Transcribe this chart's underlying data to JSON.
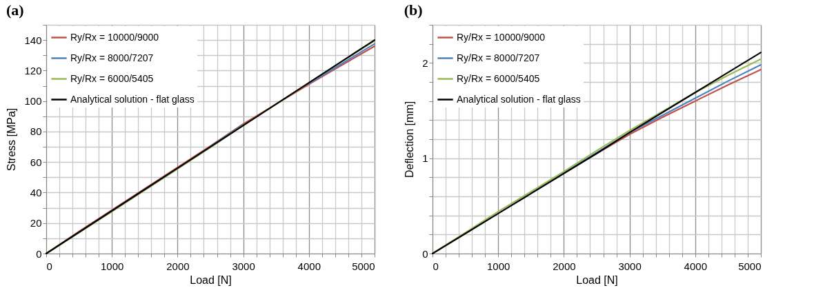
{
  "chart_data": [
    {
      "type": "line",
      "title": "(a)",
      "xlabel": "Load [N]",
      "ylabel": "Stress  [MPa]",
      "grid": true,
      "legend": "top left",
      "x": [
        0,
        500,
        1000,
        1500,
        2000,
        2500,
        3000,
        3500,
        4000,
        4500,
        5000
      ],
      "xlim": [
        0,
        5000
      ],
      "ylim": [
        0,
        150
      ],
      "xticks": [
        0,
        {
          "value": 200,
          "label": null
        },
        {
          "value": 400,
          "label": null
        },
        {
          "value": 600,
          "label": null
        },
        {
          "value": 800,
          "label": null
        },
        1000,
        {
          "value": 1200,
          "label": null
        },
        {
          "value": 1400,
          "label": null
        },
        {
          "value": 1600,
          "label": null
        },
        {
          "value": 1800,
          "label": null
        },
        2000,
        {
          "value": 2200,
          "label": null
        },
        {
          "value": 2400,
          "label": null
        },
        {
          "value": 2600,
          "label": null
        },
        {
          "value": 2800,
          "label": null
        },
        3000,
        {
          "value": 3200,
          "label": null
        },
        {
          "value": 3400,
          "label": null
        },
        {
          "value": 3600,
          "label": null
        },
        {
          "value": 3800,
          "label": null
        },
        4000,
        {
          "value": 4200,
          "label": null
        },
        {
          "value": 4400,
          "label": null
        },
        {
          "value": 4600,
          "label": null
        },
        {
          "value": 4800,
          "label": null
        },
        5000
      ],
      "yticks": [
        0,
        {
          "value": 10,
          "label": null
        },
        20,
        {
          "value": 30,
          "label": null
        },
        40,
        {
          "value": 50,
          "label": null
        },
        60,
        {
          "value": 70,
          "label": null
        },
        80,
        {
          "value": 90,
          "label": null
        },
        100,
        {
          "value": 110,
          "label": null
        },
        120,
        {
          "value": 130,
          "label": null
        },
        140,
        {
          "value": 150,
          "label": null
        }
      ],
      "series": [
        {
          "name": "Ry/Rx = 10000/9000",
          "color": "#c0504d",
          "values": [
            0,
            14.5,
            28.5,
            42.5,
            56.5,
            70.5,
            85,
            98,
            111,
            123.5,
            136
          ]
        },
        {
          "name": "Ry/Rx = 8000/7207",
          "color": "#4f81bd",
          "values": [
            null,
            null,
            null,
            null,
            null,
            70.2,
            84.5,
            null,
            111.5,
            124.5,
            137.5
          ]
        },
        {
          "name": "Ry/Rx = 6000/5405",
          "color": "#9bbb59",
          "values": [
            0,
            13.8,
            27.5,
            41.5,
            55.5,
            69.5,
            84,
            98,
            112,
            126,
            139.5
          ]
        },
        {
          "name": "Analytical solution - flat glass",
          "color": "#000000",
          "values": [
            0,
            14,
            28,
            42,
            56,
            70,
            84,
            98,
            112,
            126,
            140
          ]
        }
      ]
    },
    {
      "type": "line",
      "title": "(b)",
      "xlabel": "Load [N]",
      "ylabel": "Deflection  [mm]",
      "grid": true,
      "legend": "top left",
      "x": [
        0,
        500,
        1000,
        1500,
        2000,
        2500,
        3000,
        3500,
        4000,
        4500,
        5000
      ],
      "xlim": [
        0,
        5000
      ],
      "ylim": [
        0,
        2.4
      ],
      "xticks": [
        0,
        {
          "value": 200,
          "label": null
        },
        {
          "value": 400,
          "label": null
        },
        {
          "value": 600,
          "label": null
        },
        {
          "value": 800,
          "label": null
        },
        1000,
        {
          "value": 1200,
          "label": null
        },
        {
          "value": 1400,
          "label": null
        },
        {
          "value": 1600,
          "label": null
        },
        {
          "value": 1800,
          "label": null
        },
        2000,
        {
          "value": 2200,
          "label": null
        },
        {
          "value": 2400,
          "label": null
        },
        {
          "value": 2600,
          "label": null
        },
        {
          "value": 2800,
          "label": null
        },
        3000,
        {
          "value": 3200,
          "label": null
        },
        {
          "value": 3400,
          "label": null
        },
        {
          "value": 3600,
          "label": null
        },
        {
          "value": 3800,
          "label": null
        },
        4000,
        {
          "value": 4200,
          "label": null
        },
        {
          "value": 4400,
          "label": null
        },
        {
          "value": 4600,
          "label": null
        },
        {
          "value": 4800,
          "label": null
        },
        5000
      ],
      "yticks": [
        0,
        {
          "value": 0.2,
          "label": null
        },
        {
          "value": 0.4,
          "label": null
        },
        {
          "value": 0.6,
          "label": null
        },
        {
          "value": 0.8,
          "label": null
        },
        1,
        {
          "value": 1.2,
          "label": null
        },
        {
          "value": 1.4,
          "label": null
        },
        {
          "value": 1.6,
          "label": null
        },
        {
          "value": 1.8,
          "label": null
        },
        2,
        {
          "value": 2.2,
          "label": null
        },
        {
          "value": 2.4,
          "label": null
        }
      ],
      "series": [
        {
          "name": "Ry/Rx = 10000/9000",
          "color": "#c0504d",
          "values": [
            null,
            null,
            null,
            null,
            0.85,
            1.05,
            1.25,
            1.43,
            1.6,
            1.77,
            1.93
          ]
        },
        {
          "name": "Ry/Rx = 8000/7207",
          "color": "#4f81bd",
          "values": [
            null,
            null,
            null,
            0.64,
            0.85,
            1.06,
            1.27,
            1.45,
            1.63,
            1.81,
            1.98
          ]
        },
        {
          "name": "Ry/Rx = 6000/5405",
          "color": "#9bbb59",
          "values": [
            0,
            0.22,
            0.44,
            0.65,
            0.86,
            1.08,
            1.29,
            1.49,
            1.69,
            1.87,
            2.04
          ]
        },
        {
          "name": "Analytical solution - flat glass",
          "color": "#000000",
          "values": [
            0,
            0.21,
            0.42,
            0.63,
            0.84,
            1.05,
            1.27,
            1.48,
            1.69,
            1.9,
            2.11
          ]
        }
      ]
    }
  ]
}
